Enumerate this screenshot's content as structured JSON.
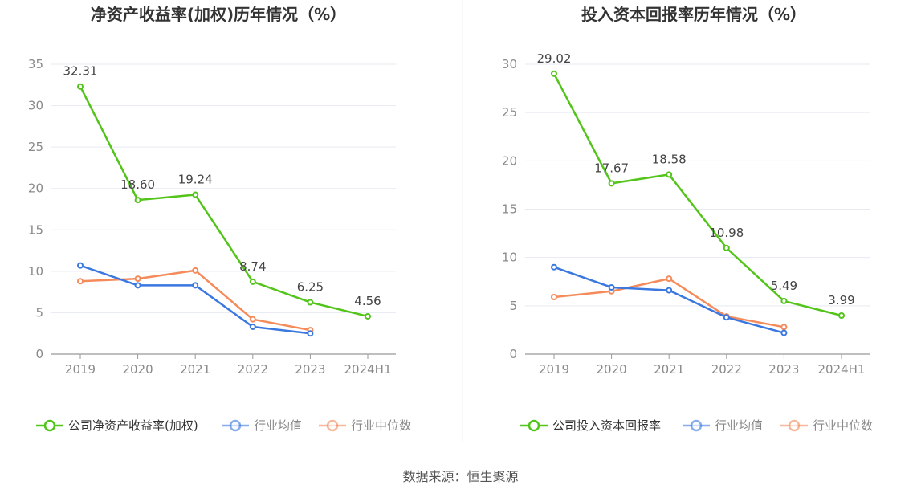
{
  "source_text": "数据来源：恒生聚源",
  "chart_data": [
    {
      "type": "line",
      "title": "净资产收益率(加权)历年情况（%）",
      "categories": [
        "2019",
        "2020",
        "2021",
        "2022",
        "2023",
        "2024H1"
      ],
      "ylim": [
        0,
        35
      ],
      "yticks": [
        0,
        5,
        10,
        15,
        20,
        25,
        30,
        35
      ],
      "grid": true,
      "legend_position": "bottom",
      "series": [
        {
          "name": "公司净资产收益率(加权)",
          "color": "#52c41a",
          "labeled": true,
          "values": [
            32.31,
            18.6,
            19.24,
            8.74,
            6.25,
            4.56
          ],
          "labels": [
            "32.31",
            "18.60",
            "19.24",
            "8.74",
            "6.25",
            "4.56"
          ]
        },
        {
          "name": "行业均值",
          "color": "#3a78e0",
          "labeled": false,
          "values": [
            10.7,
            8.3,
            8.3,
            3.3,
            2.5,
            null
          ]
        },
        {
          "name": "行业中位数",
          "color": "#f58a5a",
          "labeled": false,
          "values": [
            8.8,
            9.1,
            10.1,
            4.2,
            2.9,
            null
          ]
        }
      ]
    },
    {
      "type": "line",
      "title": "投入资本回报率历年情况（%）",
      "categories": [
        "2019",
        "2020",
        "2021",
        "2022",
        "2023",
        "2024H1"
      ],
      "ylim": [
        0,
        30
      ],
      "yticks": [
        0,
        5,
        10,
        15,
        20,
        25,
        30
      ],
      "grid": true,
      "legend_position": "bottom",
      "series": [
        {
          "name": "公司投入资本回报率",
          "color": "#52c41a",
          "labeled": true,
          "values": [
            29.02,
            17.67,
            18.58,
            10.98,
            5.49,
            3.99
          ],
          "labels": [
            "29.02",
            "17.67",
            "18.58",
            "10.98",
            "5.49",
            "3.99"
          ]
        },
        {
          "name": "行业均值",
          "color": "#3a78e0",
          "labeled": false,
          "values": [
            9.0,
            6.9,
            6.6,
            3.8,
            2.2,
            null
          ]
        },
        {
          "name": "行业中位数",
          "color": "#f58a5a",
          "labeled": false,
          "values": [
            5.9,
            6.5,
            7.8,
            3.9,
            2.8,
            null
          ]
        }
      ]
    }
  ]
}
